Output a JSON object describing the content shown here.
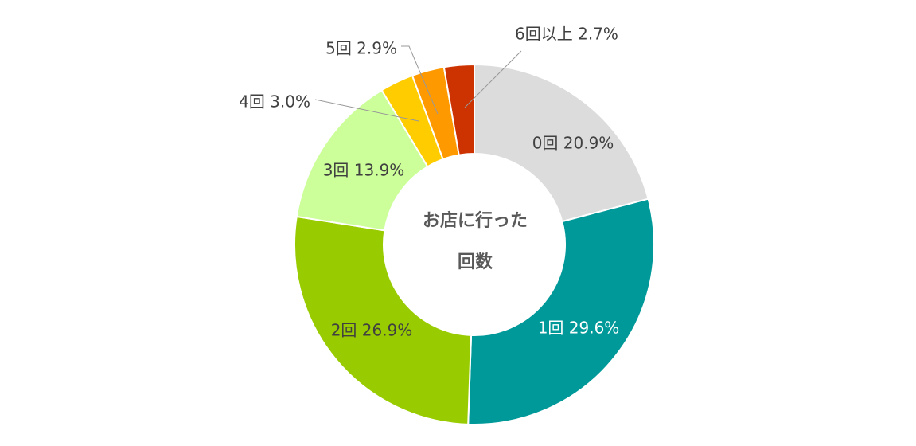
{
  "chart_data": {
    "type": "pie",
    "title": "お店に行った回数",
    "title_lines": [
      "お店に行った",
      "回数"
    ],
    "categories": [
      "0回",
      "1回",
      "2回",
      "3回",
      "4回",
      "5回",
      "6回以上"
    ],
    "values": [
      20.9,
      29.6,
      26.9,
      13.9,
      3.0,
      2.9,
      2.7
    ],
    "labels": [
      "0回 20.9%",
      "1回 29.6%",
      "2回 26.9%",
      "3回 13.9%",
      "4回 3.0%",
      "5回 2.9%",
      "6回以上 2.7%"
    ],
    "colors": [
      "#DCDCDC",
      "#009999",
      "#99CC00",
      "#CCFF99",
      "#FFCC00",
      "#FF9900",
      "#CC3300"
    ],
    "label_colors": [
      "#404040",
      "#FFFFFF",
      "#404040",
      "#404040",
      "#404040",
      "#404040",
      "#404040"
    ],
    "donut": true,
    "legend": "none"
  }
}
